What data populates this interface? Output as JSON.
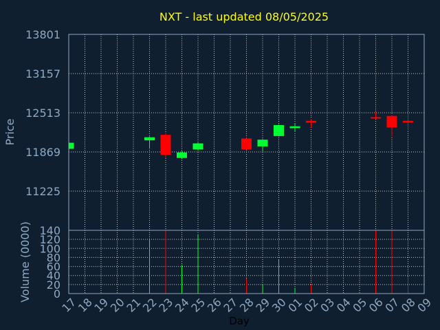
{
  "chart_data": {
    "title": "NXT - last updated 08/05/2025",
    "colors": {
      "background": "#0f1f2f",
      "title": "#ffff00",
      "axis_text": "#8fa9c4",
      "frame": "#8fa9c4",
      "grid": "#c7c7c7",
      "up": "#00ff33",
      "down": "#ff0000",
      "x_label": "#000000"
    },
    "price_panel": {
      "type": "candlestick",
      "ylabel": "Price",
      "ylim": [
        10581,
        13801
      ],
      "yticks": [
        11225,
        11869,
        12513,
        13157,
        13801
      ],
      "grid": true,
      "candles": [
        {
          "day": "17",
          "open": 11920,
          "close": 12020,
          "high": 12030,
          "low": 11910
        },
        {
          "day": "22",
          "open": 12060,
          "close": 12110,
          "high": 12120,
          "low": 11940
        },
        {
          "day": "23",
          "open": 12150,
          "close": 11820,
          "high": 12180,
          "low": 11770
        },
        {
          "day": "24",
          "open": 11770,
          "close": 11860,
          "high": 11880,
          "low": 11750
        },
        {
          "day": "25",
          "open": 11910,
          "close": 12010,
          "high": 12020,
          "low": 11890
        },
        {
          "day": "28",
          "open": 12090,
          "close": 11910,
          "high": 12100,
          "low": 11900
        },
        {
          "day": "29",
          "open": 11960,
          "close": 12070,
          "high": 12080,
          "low": 11880
        },
        {
          "day": "30",
          "open": 12130,
          "close": 12310,
          "high": 12320,
          "low": 12120
        },
        {
          "day": "01",
          "open": 12260,
          "close": 12290,
          "high": 12330,
          "low": 12200
        },
        {
          "day": "02",
          "open": 12380,
          "close": 12350,
          "high": 12410,
          "low": 12270
        },
        {
          "day": "06",
          "open": 12440,
          "close": 12420,
          "high": 12530,
          "low": 12410
        },
        {
          "day": "07",
          "open": 12460,
          "close": 12270,
          "high": 12480,
          "low": 12120
        },
        {
          "day": "08",
          "open": 12380,
          "close": 12350,
          "high": 12530,
          "low": 12220
        }
      ]
    },
    "volume_panel": {
      "type": "bar",
      "ylabel": "Volume (0000)",
      "ylim": [
        0,
        140
      ],
      "yticks": [
        0,
        20,
        40,
        60,
        80,
        100,
        120,
        140
      ],
      "grid": true,
      "bars": [
        {
          "day": "22",
          "value": 120,
          "direction": "up"
        },
        {
          "day": "23",
          "value": 140,
          "direction": "down"
        },
        {
          "day": "24",
          "value": 63,
          "direction": "up"
        },
        {
          "day": "25",
          "value": 130,
          "direction": "up"
        },
        {
          "day": "28",
          "value": 33,
          "direction": "down"
        },
        {
          "day": "29",
          "value": 21,
          "direction": "up"
        },
        {
          "day": "30",
          "value": 75,
          "direction": "up"
        },
        {
          "day": "01",
          "value": 13,
          "direction": "up"
        },
        {
          "day": "02",
          "value": 20,
          "direction": "down"
        },
        {
          "day": "06",
          "value": 140,
          "direction": "down"
        },
        {
          "day": "07",
          "value": 140,
          "direction": "down"
        },
        {
          "day": "08",
          "value": 38,
          "direction": "down"
        }
      ]
    },
    "x_axis": {
      "label": "Day",
      "categories": [
        "17",
        "18",
        "19",
        "20",
        "21",
        "22",
        "23",
        "24",
        "25",
        "26",
        "27",
        "28",
        "29",
        "30",
        "01",
        "02",
        "03",
        "04",
        "05",
        "06",
        "07",
        "08",
        "09"
      ]
    }
  }
}
